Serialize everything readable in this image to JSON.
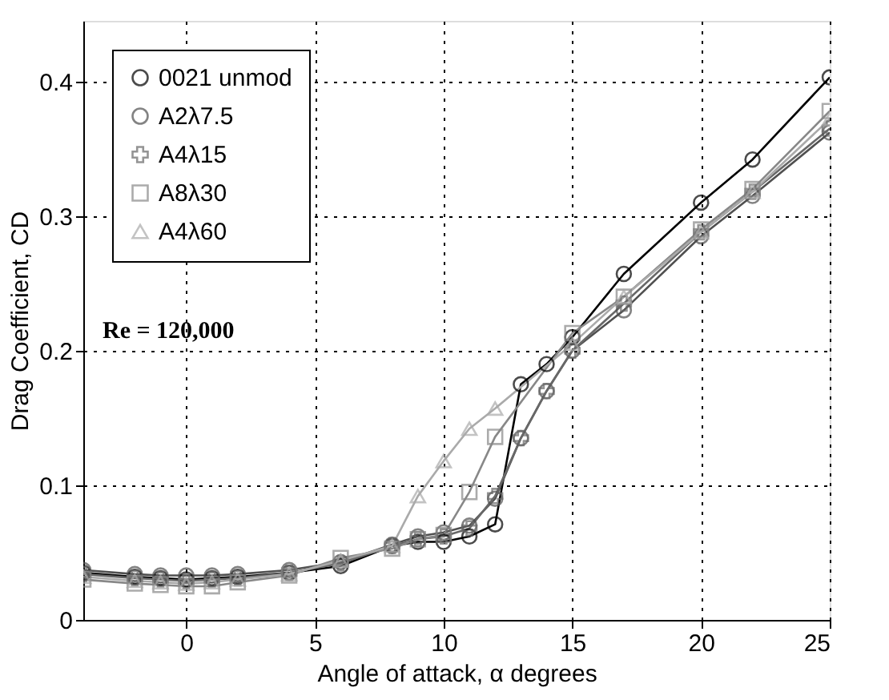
{
  "chart_data": {
    "type": "line",
    "xlabel": "Angle of attack, α degrees",
    "ylabel": "Drag Coefficient, CD",
    "x": [
      -4,
      -2,
      -1,
      0,
      1,
      2,
      4,
      6,
      8,
      9,
      10,
      11,
      12,
      13,
      14,
      15,
      17,
      20,
      22,
      25
    ],
    "series": [
      {
        "name": "0021 unmod",
        "color": "#000000",
        "marker": "circle",
        "values": [
          0.035,
          0.032,
          0.031,
          0.03,
          0.031,
          0.032,
          0.035,
          0.04,
          0.055,
          0.058,
          0.058,
          0.062,
          0.071,
          0.175,
          0.19,
          0.21,
          0.257,
          0.31,
          0.342,
          0.403
        ]
      },
      {
        "name": "A2λ7.5",
        "color": "#505050",
        "marker": "circle",
        "values": [
          0.037,
          0.034,
          0.033,
          0.033,
          0.033,
          0.034,
          0.037,
          0.043,
          0.056,
          0.062,
          0.065,
          0.07,
          0.09,
          0.135,
          0.17,
          0.2,
          0.23,
          0.285,
          0.315,
          0.362
        ]
      },
      {
        "name": "A4λ15",
        "color": "#686868",
        "marker": "cross",
        "values": [
          0.034,
          0.031,
          0.03,
          0.029,
          0.03,
          0.031,
          0.035,
          0.042,
          0.055,
          0.06,
          0.062,
          0.068,
          0.092,
          0.135,
          0.17,
          0.2,
          0.235,
          0.288,
          0.318,
          0.365
        ]
      },
      {
        "name": "A8λ30",
        "color": "#888888",
        "marker": "square",
        "x": [
          -4,
          -2,
          -1,
          0,
          1,
          2,
          4,
          6,
          8,
          9,
          10,
          11,
          12,
          15,
          17,
          20,
          22,
          25
        ],
        "values": [
          0.03,
          0.027,
          0.026,
          0.025,
          0.025,
          0.028,
          0.033,
          0.046,
          0.053,
          0.06,
          0.063,
          0.095,
          0.136,
          0.213,
          0.24,
          0.29,
          0.32,
          0.378
        ]
      },
      {
        "name": "A4λ60",
        "color": "#aaaaaa",
        "marker": "triangle",
        "x": [
          -4,
          -2,
          -1,
          0,
          1,
          2,
          4,
          6,
          8,
          9,
          10,
          11,
          12,
          15,
          17,
          20,
          22,
          25
        ],
        "values": [
          0.032,
          0.029,
          0.028,
          0.027,
          0.028,
          0.03,
          0.034,
          0.044,
          0.055,
          0.092,
          0.118,
          0.142,
          0.157,
          0.205,
          0.24,
          0.288,
          0.318,
          0.372
        ]
      }
    ],
    "xlim": [
      -4,
      25
    ],
    "xticks": [
      0,
      5,
      10,
      15,
      20,
      25
    ],
    "ylim": [
      0,
      0.445
    ],
    "yticks": [
      0,
      0.1,
      0.2,
      0.3,
      0.4
    ],
    "grid": true,
    "legend": "top left",
    "line_style": "solid",
    "annotations": [
      "Re = 120,000"
    ]
  }
}
